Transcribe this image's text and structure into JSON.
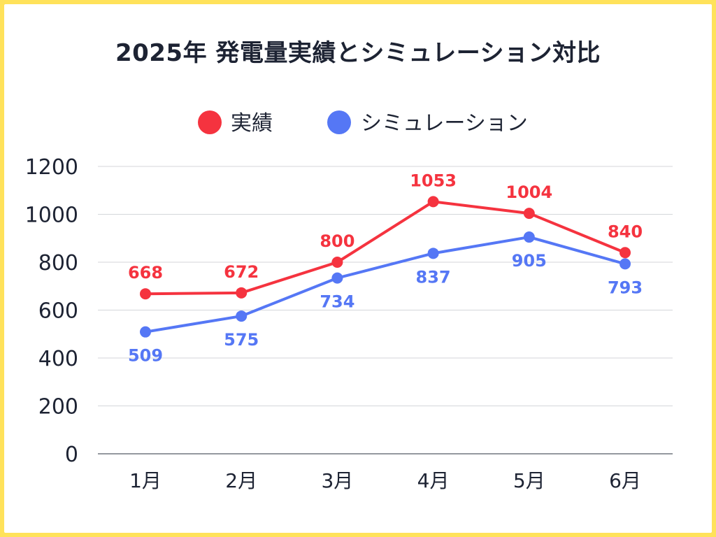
{
  "chart_data": {
    "type": "line",
    "title": "2025年 発電量実績とシミュレーション対比",
    "categories": [
      "1月",
      "2月",
      "3月",
      "4月",
      "5月",
      "6月"
    ],
    "series": [
      {
        "name": "実績",
        "color": "#f5333f",
        "values": [
          668,
          672,
          800,
          1053,
          1004,
          840
        ]
      },
      {
        "name": "シミュレーション",
        "color": "#5577f5",
        "values": [
          509,
          575,
          734,
          837,
          905,
          793
        ]
      }
    ],
    "ylim": [
      0,
      1200
    ],
    "yticks": [
      0,
      200,
      400,
      600,
      800,
      1000,
      1200
    ],
    "xlabel": "",
    "ylabel": "",
    "grid": true,
    "legend": "top-center"
  }
}
